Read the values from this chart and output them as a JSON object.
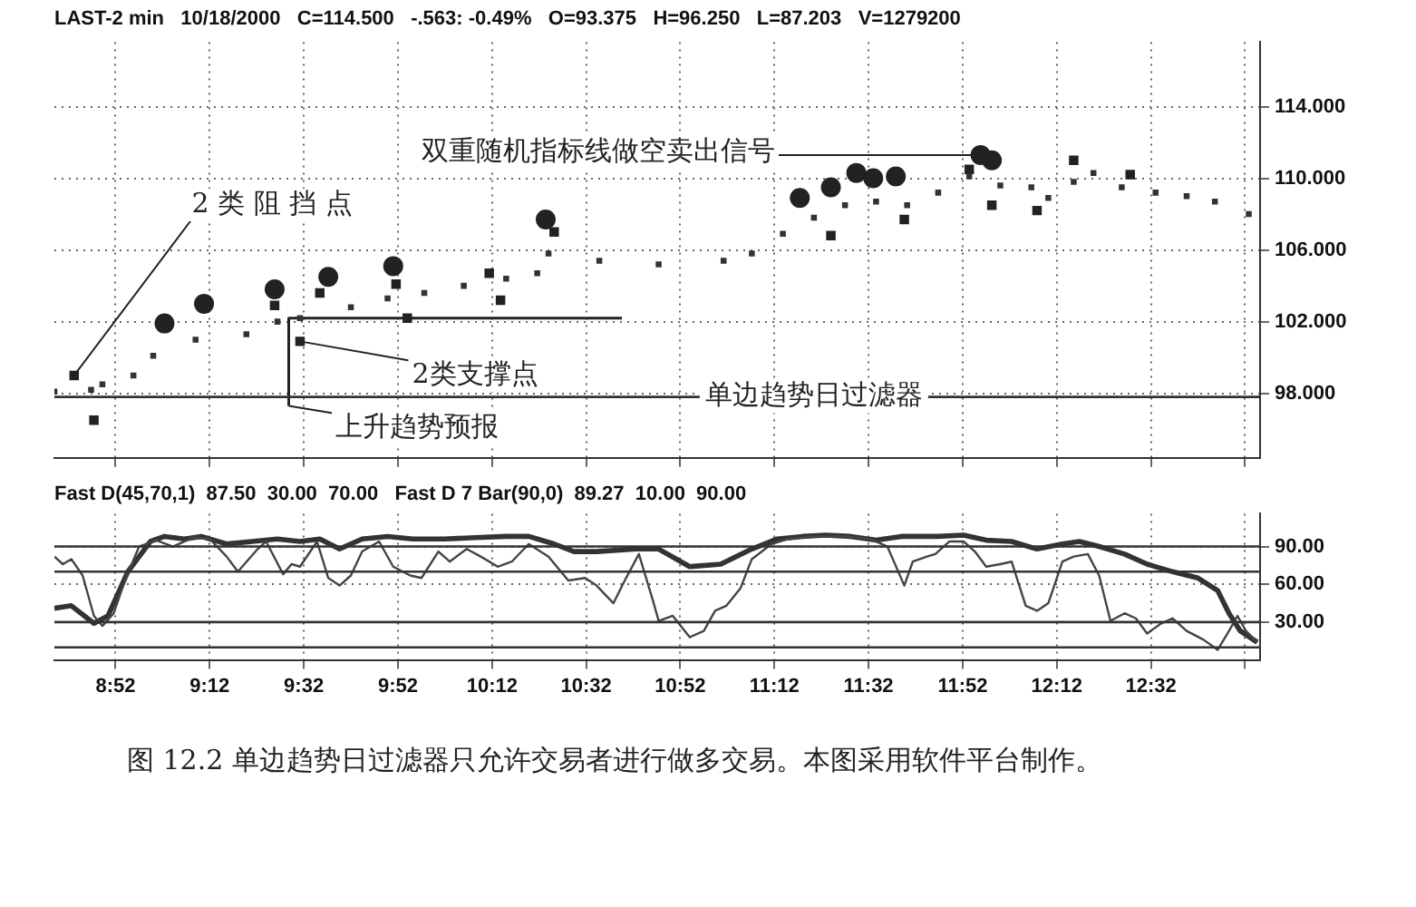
{
  "chart_data": [
    {
      "type": "scatter",
      "subtitle": "LAST-2 min   10/18/2000   C=114.500   -.563: -0.49%   O=93.375   H=96.250   L=87.203   V=1279200",
      "xlim": [
        8.65,
        12.92
      ],
      "xticks": [
        8.8667,
        9.2,
        9.5333,
        9.8667,
        10.2,
        10.5333,
        10.8667,
        11.2,
        11.5333,
        11.8667,
        12.2,
        12.5333,
        12.8667
      ],
      "ylim": [
        94.4,
        117.6
      ],
      "yticks": [
        {
          "value": 98,
          "label": "98.000"
        },
        {
          "value": 102,
          "label": "102.000"
        },
        {
          "value": 106,
          "label": "106.000"
        },
        {
          "value": 110,
          "label": "110.000"
        },
        {
          "value": 114,
          "label": "114.000"
        }
      ],
      "tick_labels": "y",
      "grid": true,
      "legend": false,
      "series": [
        {
          "type": "scatter",
          "marker": "square",
          "color": "#333333",
          "x": [
            8.65,
            8.78,
            8.82,
            8.93,
            9.0,
            9.15,
            9.33,
            9.44,
            9.52,
            9.7,
            9.83,
            9.96,
            10.1,
            10.25,
            10.36,
            10.4,
            10.58,
            10.79,
            11.02,
            11.12,
            11.23,
            11.34,
            11.45,
            11.56,
            11.67,
            11.78,
            11.89,
            12.0,
            12.11,
            12.17,
            12.26,
            12.33,
            12.43,
            12.55,
            12.66,
            12.76,
            12.88
          ],
          "values": [
            98.1,
            98.2,
            98.5,
            99,
            100.1,
            101,
            101.3,
            102,
            102.2,
            102.8,
            103.3,
            103.6,
            104,
            104.4,
            104.7,
            105.8,
            105.4,
            105.2,
            105.4,
            105.8,
            106.9,
            107.8,
            108.5,
            108.7,
            108.5,
            109.2,
            110.1,
            109.6,
            109.5,
            108.9,
            109.8,
            110.3,
            109.5,
            109.2,
            109,
            108.7,
            108
          ]
        },
        {
          "type": "scatter",
          "marker": "circle",
          "color": "#222222",
          "x": [
            9.04,
            9.18,
            9.43,
            9.62,
            9.85,
            10.39,
            11.29,
            11.4,
            11.49,
            11.55,
            11.63,
            11.93,
            11.97
          ],
          "values": [
            101.9,
            103,
            103.8,
            104.5,
            105.1,
            107.7,
            108.9,
            109.5,
            110.3,
            110,
            110.1,
            111.3,
            111
          ]
        },
        {
          "type": "scatter",
          "marker": "square",
          "color": "#222222",
          "x": [
            8.72,
            8.79,
            9.43,
            9.52,
            9.59,
            9.86,
            9.9,
            10.19,
            10.23,
            10.42,
            11.4,
            11.66,
            11.89,
            11.97,
            12.13,
            12.26,
            12.46
          ],
          "values": [
            99,
            96.5,
            102.9,
            100.9,
            103.6,
            104.1,
            102.2,
            104.7,
            103.2,
            107,
            106.8,
            107.7,
            110.5,
            108.5,
            108.2,
            111,
            110.2
          ]
        },
        {
          "type": "line",
          "marker": "none",
          "color": "#222222",
          "x": [
            9.48,
            9.48,
            10.66
          ],
          "values": [
            97.3,
            102.2,
            102.2
          ]
        }
      ],
      "ref_lines": [
        {
          "axis": "y",
          "value": 97.8,
          "label": "单边趋势日过滤器",
          "color": "#333333"
        }
      ],
      "annotations": [
        {
          "text": "双重随机指标线做空卖出信号",
          "x": 11.93,
          "y": 111.3
        },
        {
          "text": "2 类 阻 挡 点",
          "x": 8.72,
          "y": 99
        },
        {
          "text": "2类支撑点",
          "x": 9.52,
          "y": 100.9
        },
        {
          "text": "上升趋势预报",
          "x": 9.48,
          "y": 97.3
        }
      ]
    },
    {
      "type": "line",
      "title": "Fast D(45,70,1)  87.50  30.00  70.00   Fast D 7 Bar(90,0)  89.27  10.00  90.00",
      "xlim": [
        8.65,
        12.92
      ],
      "xticks": [
        {
          "value": 8.8667,
          "label": "8:52"
        },
        {
          "value": 9.2,
          "label": "9:12"
        },
        {
          "value": 9.5333,
          "label": "9:32"
        },
        {
          "value": 9.8667,
          "label": "9:52"
        },
        {
          "value": 10.2,
          "label": "10:12"
        },
        {
          "value": 10.5333,
          "label": "10:32"
        },
        {
          "value": 10.8667,
          "label": "10:52"
        },
        {
          "value": 11.2,
          "label": "11:12"
        },
        {
          "value": 11.5333,
          "label": "11:32"
        },
        {
          "value": 11.8667,
          "label": "11:52"
        },
        {
          "value": 12.2,
          "label": "12:12"
        },
        {
          "value": 12.5333,
          "label": "12:32"
        },
        {
          "value": 12.8667,
          "label": null
        }
      ],
      "ylim": [
        0,
        116
      ],
      "yticks": [
        {
          "value": 30,
          "label": "30.00"
        },
        {
          "value": 60,
          "label": "60.00"
        },
        {
          "value": 90,
          "label": "90.00"
        }
      ],
      "grid": true,
      "legend": false,
      "marker": "none",
      "series": [
        {
          "color": "#444444",
          "x": [
            8.65,
            8.68,
            8.71,
            8.75,
            8.79,
            8.82,
            8.86,
            8.9,
            8.95,
            9.01,
            9.07,
            9.14,
            9.2,
            9.26,
            9.3,
            9.37,
            9.4,
            9.46,
            9.49,
            9.52,
            9.58,
            9.62,
            9.66,
            9.7,
            9.74,
            9.8,
            9.85,
            9.91,
            9.95,
            10.01,
            10.05,
            10.11,
            10.16,
            10.22,
            10.27,
            10.33,
            10.4,
            10.47,
            10.53,
            10.57,
            10.63,
            10.67,
            10.72,
            10.77,
            10.79,
            10.84,
            10.9,
            10.95,
            10.99,
            11.03,
            11.08,
            11.12,
            11.19,
            11.25,
            11.34,
            11.45,
            11.54,
            11.6,
            11.66,
            11.69,
            11.74,
            11.77,
            11.82,
            11.87,
            11.91,
            11.95,
            12.0,
            12.04,
            12.09,
            12.13,
            12.17,
            12.22,
            12.26,
            12.31,
            12.35,
            12.39,
            12.44,
            12.48,
            12.52,
            12.57,
            12.61,
            12.66,
            12.72,
            12.77,
            12.81,
            12.84,
            12.87,
            12.91
          ],
          "values": [
            82,
            76,
            80,
            67,
            35,
            27,
            37,
            63,
            90,
            95,
            90,
            97,
            96,
            82,
            70,
            88,
            94,
            68,
            76,
            74,
            94,
            65,
            59,
            67,
            86,
            94,
            74,
            67,
            65,
            86,
            78,
            88,
            82,
            74,
            78,
            92,
            82,
            63,
            65,
            59,
            45,
            63,
            84,
            47,
            31,
            35,
            18,
            23,
            39,
            43,
            57,
            80,
            92,
            96,
            98,
            98,
            96,
            90,
            59,
            78,
            82,
            84,
            94,
            94,
            86,
            74,
            76,
            78,
            43,
            39,
            45,
            78,
            82,
            84,
            67,
            31,
            37,
            33,
            21,
            29,
            33,
            23,
            16,
            8,
            23,
            35,
            23,
            14
          ]
        },
        {
          "color": "#333333",
          "x": [
            8.65,
            8.71,
            8.79,
            8.84,
            8.91,
            8.99,
            9.04,
            9.11,
            9.17,
            9.26,
            9.35,
            9.44,
            9.52,
            9.59,
            9.66,
            9.74,
            9.83,
            9.92,
            10.03,
            10.14,
            10.25,
            10.33,
            10.42,
            10.49,
            10.57,
            10.71,
            10.79,
            10.9,
            11.01,
            11.12,
            11.21,
            11.3,
            11.38,
            11.47,
            11.56,
            11.65,
            11.78,
            11.87,
            11.95,
            12.04,
            12.13,
            12.22,
            12.28,
            12.35,
            12.44,
            12.52,
            12.61,
            12.7,
            12.77,
            12.81,
            12.85,
            12.91
          ],
          "values": [
            41,
            43,
            29,
            35,
            70,
            94,
            98,
            96,
            98,
            92,
            94,
            96,
            94,
            96,
            88,
            96,
            98,
            96,
            96,
            97,
            98,
            98,
            92,
            86,
            86,
            88,
            88,
            74,
            76,
            88,
            96,
            98,
            99,
            98,
            95,
            98,
            98,
            99,
            95,
            94,
            88,
            92,
            94,
            90,
            84,
            76,
            70,
            65,
            55,
            37,
            23,
            14
          ]
        }
      ],
      "ref_lines": [
        {
          "axis": "y",
          "value": 90,
          "color": "#333333"
        },
        {
          "axis": "y",
          "value": 70,
          "color": "#333333"
        },
        {
          "axis": "y",
          "value": 30,
          "color": "#333333"
        },
        {
          "axis": "y",
          "value": 10,
          "color": "#333333"
        }
      ],
      "annotations": [
        "图 12.2   单边趋势日过滤器只允许交易者进行做多交易。本图采用软件平台制作。"
      ]
    }
  ]
}
